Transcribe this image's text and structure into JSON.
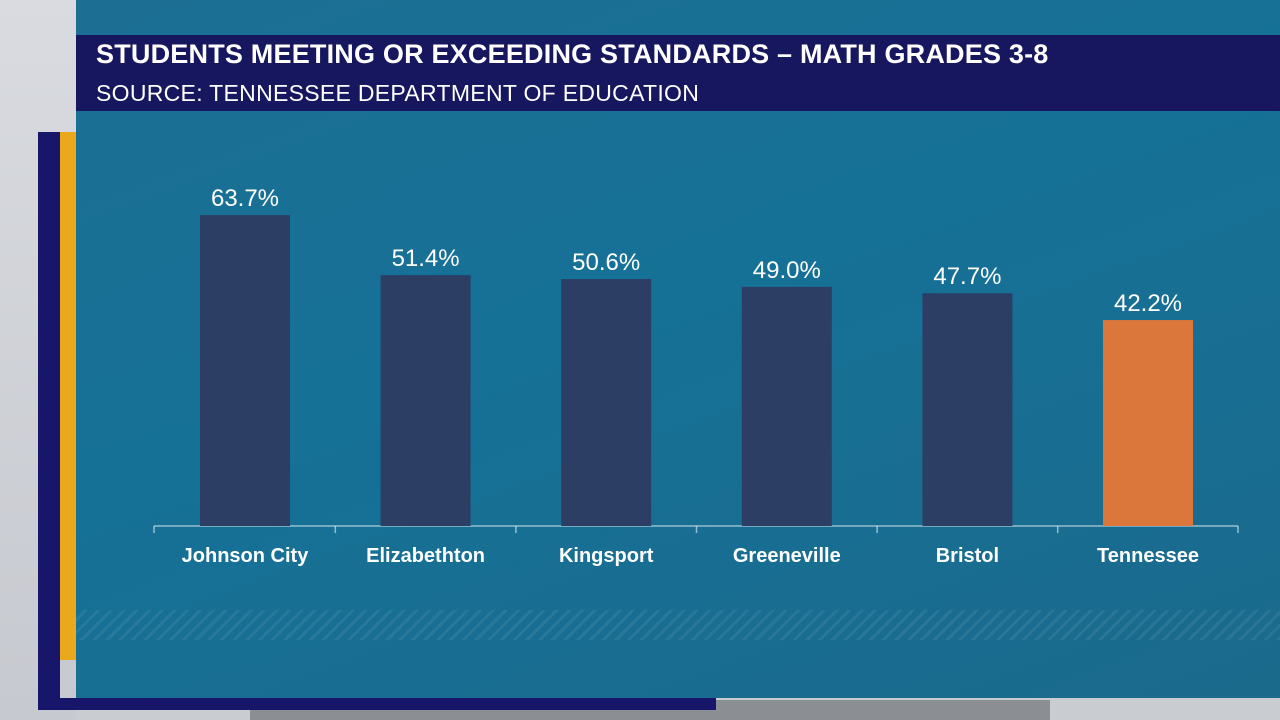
{
  "header": {
    "title": "STUDENTS MEETING OR EXCEEDING STANDARDS –  MATH GRADES 3-8",
    "subtitle": "SOURCE: TENNESSEE DEPARTMENT OF EDUCATION"
  },
  "chart_data": {
    "type": "bar",
    "categories": [
      "Johnson City",
      "Elizabethton",
      "Kingsport",
      "Greeneville",
      "Bristol",
      "Tennessee"
    ],
    "values": [
      63.7,
      51.4,
      50.6,
      49.0,
      47.7,
      42.2
    ],
    "value_labels": [
      "63.7%",
      "51.4%",
      "50.6%",
      "49.0%",
      "47.7%",
      "42.2%"
    ],
    "ylim": [
      0,
      100
    ],
    "grid": false,
    "bar_colors": [
      "#2c3e63",
      "#2c3e63",
      "#2c3e63",
      "#2c3e63",
      "#2c3e63",
      "#db773a"
    ]
  },
  "colors": {
    "header_bg": "#17175f",
    "panel_bg": "#167197",
    "accent_gold": "#e9a91a",
    "accent_navy": "#17166b"
  }
}
